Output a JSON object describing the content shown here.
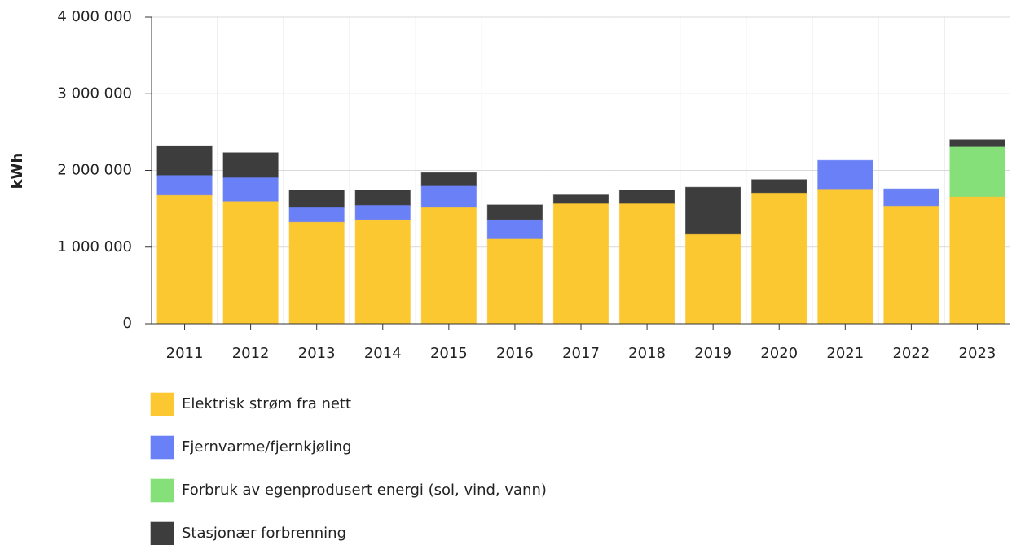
{
  "chart_data": {
    "type": "stacked_bar",
    "y_label": "kWh",
    "categories": [
      "2011",
      "2012",
      "2013",
      "2014",
      "2015",
      "2016",
      "2017",
      "2018",
      "2019",
      "2020",
      "2021",
      "2022",
      "2023"
    ],
    "series": [
      {
        "name": "Elektrisk strøm fra nett",
        "color": "#fcc832",
        "values": [
          1680000,
          1600000,
          1330000,
          1360000,
          1520000,
          1110000,
          1570000,
          1570000,
          1170000,
          1710000,
          1760000,
          1540000,
          1660000
        ]
      },
      {
        "name": "Fjernvarme/fjernkjøling",
        "color": "#6a80f7",
        "values": [
          260000,
          310000,
          190000,
          190000,
          280000,
          250000,
          0,
          0,
          0,
          0,
          370000,
          220000,
          0
        ]
      },
      {
        "name": "Forbruk av egenprodusert energi (sol, vind, vann)",
        "color": "#85e07a",
        "values": [
          0,
          0,
          0,
          0,
          0,
          0,
          0,
          0,
          0,
          0,
          0,
          0,
          650000
        ]
      },
      {
        "name": "Stasjonær forbrenning",
        "color": "#3d3d3d",
        "values": [
          380000,
          320000,
          220000,
          190000,
          170000,
          190000,
          110000,
          170000,
          610000,
          170000,
          0,
          0,
          90000
        ]
      }
    ],
    "ylim": [
      0,
      4000000
    ],
    "yticks": [
      0,
      {
        "value": 1000000,
        "label": "1 000 000"
      },
      {
        "value": 2000000,
        "label": "2 000 000"
      },
      {
        "value": 3000000,
        "label": "3 000 000"
      },
      {
        "value": 4000000,
        "label": "4 000 000"
      }
    ],
    "grid": true,
    "legend": "bottom"
  }
}
